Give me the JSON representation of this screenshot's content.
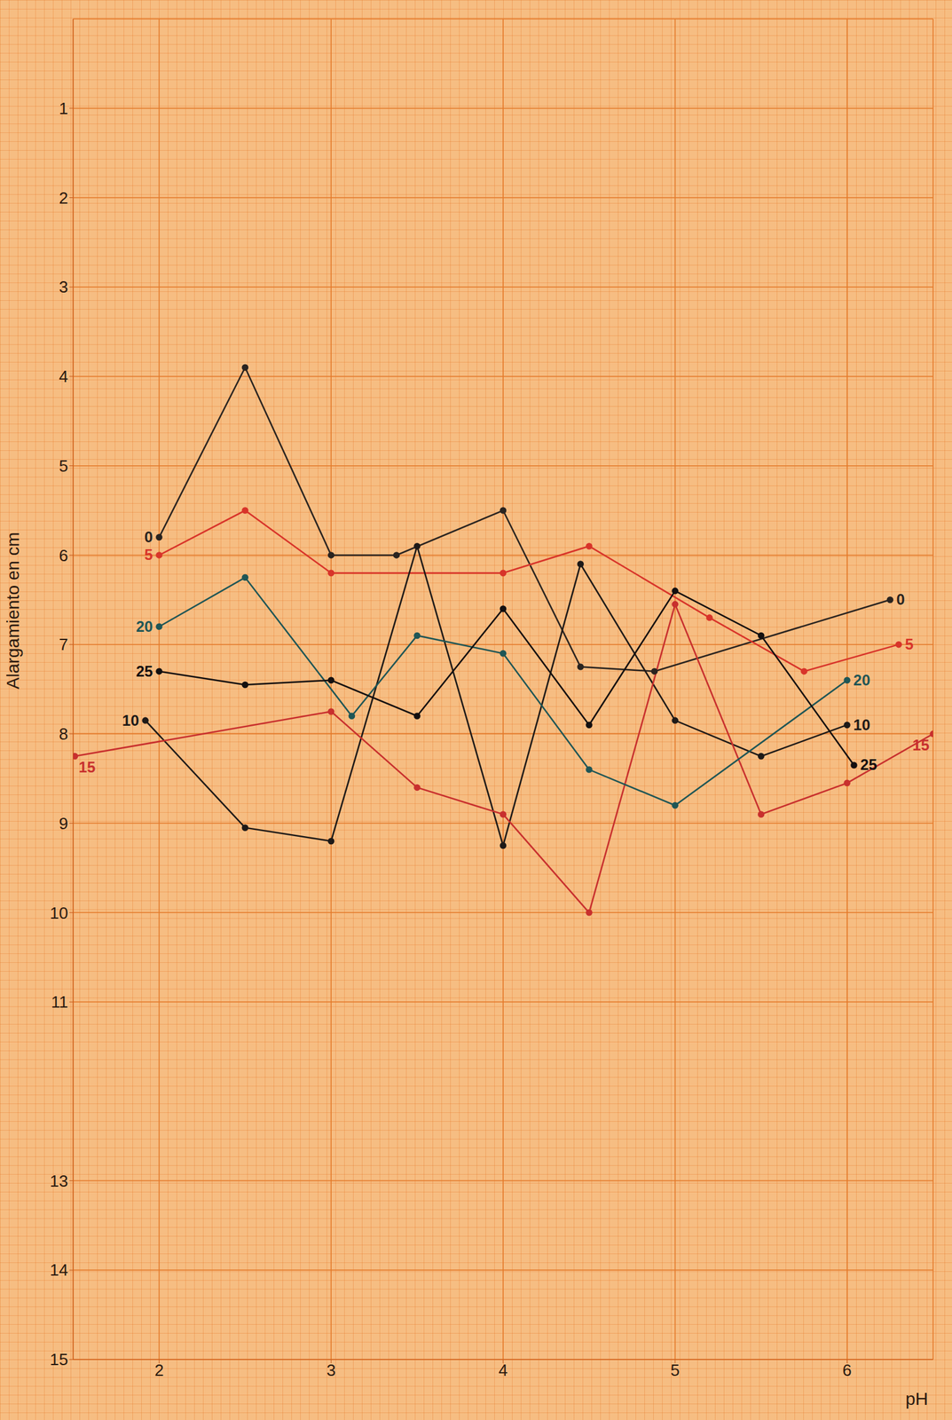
{
  "chart_data": {
    "type": "line",
    "x_label": "pH",
    "y_label": "Alargamiento en cm",
    "xlim": [
      1.5,
      6.5
    ],
    "xticks": [
      2,
      3,
      4,
      5,
      6
    ],
    "ylim": [
      0,
      15
    ],
    "yticks": [
      1,
      2,
      3,
      4,
      5,
      6,
      7,
      8,
      9,
      10,
      11,
      13,
      14,
      15
    ],
    "grid": true,
    "marker": "circle",
    "series": [
      {
        "name": "0",
        "color": "#2a2420",
        "x": [
          2,
          2.5,
          3,
          3.38,
          4,
          4.45,
          4.88,
          6.25
        ],
        "values": [
          5.8,
          3.9,
          6.0,
          6.0,
          5.5,
          7.25,
          7.3,
          6.5
        ]
      },
      {
        "name": "5",
        "color": "#d8342a",
        "x": [
          2,
          2.5,
          3,
          4,
          4.5,
          5.2,
          5.75,
          6.3
        ],
        "values": [
          6.0,
          5.5,
          6.2,
          6.2,
          5.9,
          6.7,
          7.3,
          7.0
        ]
      },
      {
        "name": "10",
        "color": "#1e1a18",
        "x": [
          1.92,
          2.5,
          3,
          3.5,
          4,
          4.45,
          5,
          5.5,
          6
        ],
        "values": [
          7.85,
          9.05,
          9.2,
          5.9,
          9.25,
          6.1,
          7.85,
          8.25,
          7.9
        ]
      },
      {
        "name": "15",
        "color": "#c8302e",
        "x": [
          1.51,
          3,
          3.5,
          4,
          4.5,
          5,
          5.5,
          6,
          6.5
        ],
        "values": [
          8.25,
          7.75,
          8.6,
          8.9,
          10.0,
          6.55,
          8.9,
          8.55,
          8.0
        ]
      },
      {
        "name": "20",
        "color": "#1f5656",
        "x": [
          2,
          2.5,
          3.12,
          3.5,
          4,
          4.5,
          5,
          6
        ],
        "values": [
          6.8,
          6.25,
          7.8,
          6.9,
          7.1,
          8.4,
          8.8,
          7.4
        ]
      },
      {
        "name": "25",
        "color": "#141010",
        "x": [
          2,
          2.5,
          3,
          3.5,
          4,
          4.5,
          5,
          5.5,
          6.04
        ],
        "values": [
          7.3,
          7.45,
          7.4,
          7.8,
          6.6,
          7.9,
          6.4,
          6.9,
          8.35
        ]
      }
    ]
  }
}
